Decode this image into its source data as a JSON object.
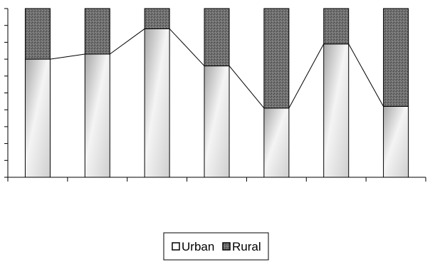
{
  "chart_data": {
    "type": "bar",
    "stacked": true,
    "normalized": true,
    "title": "",
    "xlabel": "",
    "ylabel": "",
    "ylim": [
      0,
      100
    ],
    "y_tick_count": 10,
    "categories": [
      "",
      "",
      "",
      "",
      "",
      "",
      ""
    ],
    "series": [
      {
        "name": "Urban",
        "values": [
          70,
          73,
          88,
          66,
          41,
          79,
          42
        ]
      },
      {
        "name": "Rural",
        "values": [
          30,
          27,
          12,
          34,
          59,
          21,
          58
        ]
      }
    ],
    "connecting_line": "Urban",
    "grid": false,
    "legend": "bottom-center",
    "colors": {
      "Urban": "#e8e8e8",
      "Rural": "#6e6e6e",
      "outline": "#000000"
    }
  }
}
